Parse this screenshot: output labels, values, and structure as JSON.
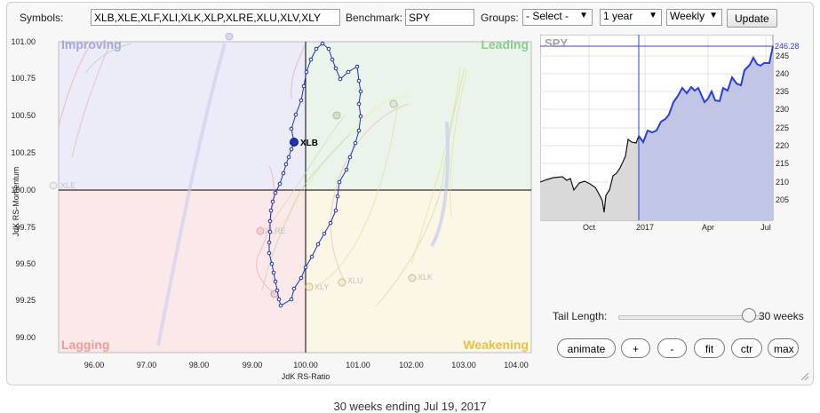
{
  "toolbar": {
    "symbols_label": "Symbols:",
    "symbols_value": "XLB,XLE,XLF,XLI,XLK,XLP,XLRE,XLU,XLV,XLY",
    "benchmark_label": "Benchmark:",
    "benchmark_value": "SPY",
    "groups_label": "Groups:",
    "groups_selected": "- Select -",
    "period_selected": "1 year",
    "frequency_selected": "Weekly",
    "update_label": "Update"
  },
  "rrg": {
    "quadrants": {
      "improving": "Improving",
      "leading": "Leading",
      "lagging": "Lagging",
      "weakening": "Weakening"
    },
    "quadrant_colors": {
      "improving": "#ececf8",
      "leading": "#eaf4ea",
      "lagging": "#fbe9e9",
      "weakening": "#fbf6e6"
    },
    "x_axis_title": "JdK RS-Ratio",
    "y_axis_title": "JdK RS-Momentum",
    "x_ticks": [
      "96.00",
      "97.00",
      "98.00",
      "99.00",
      "100.00",
      "101.00",
      "102.00",
      "103.00",
      "104.00"
    ],
    "y_ticks": [
      "101.00",
      "100.75",
      "100.50",
      "100.25",
      "100.00",
      "99.75",
      "99.50",
      "99.25",
      "99.00"
    ],
    "highlight_symbol": "XLB",
    "highlight_color": "#1a33b8",
    "faded_labels": [
      "XLE",
      "XLRE",
      "XLY",
      "XLU",
      "XLK"
    ]
  },
  "spy_chart": {
    "title": "SPY",
    "last_value": "246.28",
    "y_ticks": [
      "245",
      "240",
      "235",
      "230",
      "225",
      "220",
      "215",
      "210",
      "205"
    ],
    "x_ticks": [
      "Oct",
      "2017",
      "Apr",
      "Jul"
    ],
    "line_color": "#2b3fd6",
    "hist_color": "#111111"
  },
  "tail": {
    "label": "Tail Length:",
    "value_text": "30 weeks"
  },
  "controls": {
    "animate": "animate",
    "plus": "+",
    "minus": "-",
    "fit": "fit",
    "ctr": "ctr",
    "max": "max"
  },
  "caption": "30 weeks ending Jul 19, 2017"
}
